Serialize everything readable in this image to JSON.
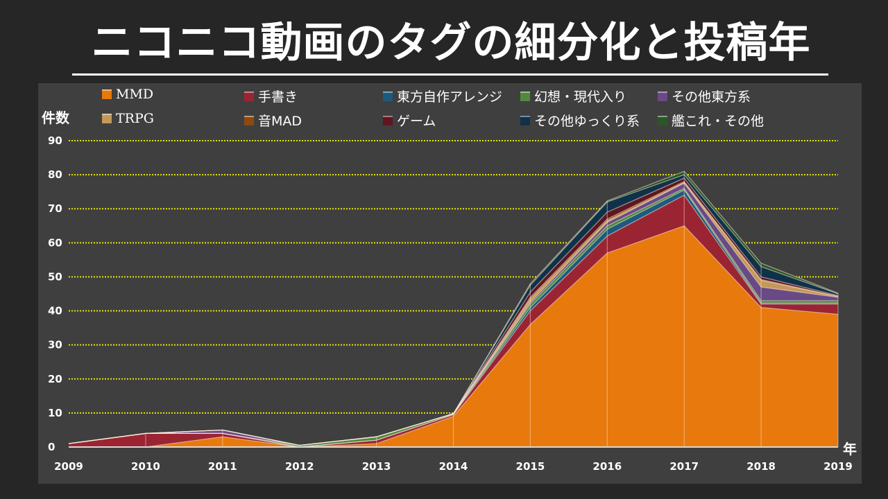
{
  "title": "ニコニコ動画のタグの細分化と投稿年",
  "chart_data": {
    "type": "area",
    "stacked": true,
    "title": "ニコニコ動画のタグの細分化と投稿年",
    "xlabel": "年",
    "ylabel": "件数",
    "ylim": [
      0,
      90
    ],
    "yticks": [
      0,
      10,
      20,
      30,
      40,
      50,
      60,
      70,
      80,
      90
    ],
    "x": [
      "2009",
      "2010",
      "2011",
      "2012",
      "2013",
      "2014",
      "2015",
      "2016",
      "2017",
      "2018",
      "2019"
    ],
    "grid": "horizontal dotted",
    "legend_position": "top",
    "series": [
      {
        "name": "MMD",
        "color": "#e8790c",
        "values": [
          0,
          0,
          3,
          0,
          1,
          9,
          36,
          57,
          65,
          41,
          39
        ]
      },
      {
        "name": "手書き",
        "color": "#9b2433",
        "values": [
          1,
          4,
          1,
          0,
          1,
          0.5,
          4,
          5,
          9,
          1,
          3
        ]
      },
      {
        "name": "東方自作アレンジ",
        "color": "#1d5a7e",
        "values": [
          0,
          0,
          0,
          0,
          0,
          0,
          1,
          2,
          1.5,
          0.3,
          0.3
        ]
      },
      {
        "name": "幻想・現代入り",
        "color": "#4f8a3d",
        "values": [
          0,
          0,
          0,
          0.5,
          1,
          0.3,
          1,
          1,
          0.5,
          0.7,
          0.7
        ]
      },
      {
        "name": "その他東方系",
        "color": "#6a4a85",
        "values": [
          0,
          0,
          1,
          0,
          0,
          0,
          0.5,
          1,
          1.5,
          4,
          1
        ]
      },
      {
        "name": "TRPG",
        "color": "#c3995a",
        "values": [
          0,
          0,
          0,
          0,
          0,
          0,
          1,
          0.5,
          0.2,
          2,
          0.2
        ]
      },
      {
        "name": "音MAD",
        "color": "#8c4a0c",
        "values": [
          0,
          0,
          0,
          0,
          0,
          0,
          0.5,
          0.5,
          0.3,
          0.2,
          0.1
        ]
      },
      {
        "name": "ゲーム",
        "color": "#5e1620",
        "values": [
          0,
          0,
          0,
          0,
          0,
          0,
          1.5,
          2,
          1,
          0.8,
          0.2
        ]
      },
      {
        "name": "その他ゆっくり系",
        "color": "#0f3249",
        "values": [
          0,
          0,
          0,
          0,
          0,
          0,
          2,
          3,
          1,
          3,
          0.5
        ]
      },
      {
        "name": "艦これ・その他",
        "color": "#2c5528",
        "values": [
          0,
          0,
          0,
          0,
          0,
          0,
          0.5,
          0.3,
          1,
          1,
          0.2
        ]
      }
    ]
  }
}
